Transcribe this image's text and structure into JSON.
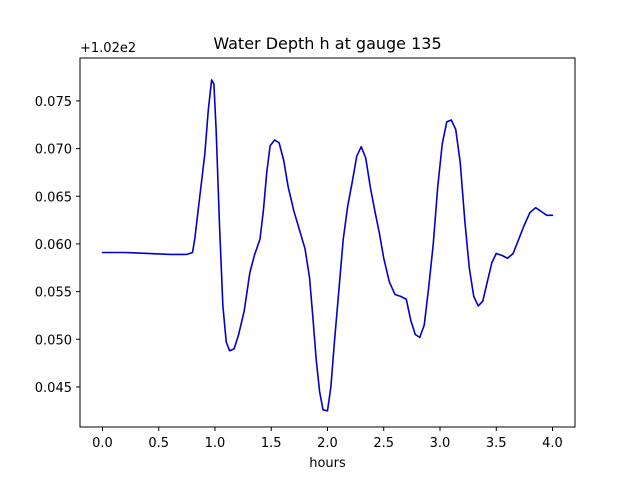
{
  "chart_data": {
    "type": "line",
    "title": "Water Depth h at gauge 135",
    "xlabel": "hours",
    "ylabel": "",
    "offset_text": "+1.02e2",
    "xlim": [
      -0.2,
      4.2
    ],
    "ylim": [
      0.0408,
      0.0795
    ],
    "xticks": [
      0.0,
      0.5,
      1.0,
      1.5,
      2.0,
      2.5,
      3.0,
      3.5,
      4.0
    ],
    "xtick_labels": [
      "0.0",
      "0.5",
      "1.0",
      "1.5",
      "2.0",
      "2.5",
      "3.0",
      "3.5",
      "4.0"
    ],
    "yticks": [
      0.045,
      0.05,
      0.055,
      0.06,
      0.065,
      0.07,
      0.075
    ],
    "ytick_labels": [
      "0.045",
      "0.050",
      "0.055",
      "0.060",
      "0.065",
      "0.070",
      "0.075"
    ],
    "grid": false,
    "series": [
      {
        "color": "#0000cc",
        "x": [
          0.0,
          0.2,
          0.4,
          0.6,
          0.75,
          0.8,
          0.82,
          0.85,
          0.88,
          0.91,
          0.94,
          0.97,
          0.99,
          1.01,
          1.04,
          1.07,
          1.1,
          1.13,
          1.17,
          1.21,
          1.26,
          1.31,
          1.35,
          1.4,
          1.43,
          1.46,
          1.49,
          1.53,
          1.57,
          1.61,
          1.65,
          1.7,
          1.75,
          1.8,
          1.84,
          1.87,
          1.9,
          1.93,
          1.96,
          2.0,
          2.03,
          2.06,
          2.1,
          2.14,
          2.18,
          2.22,
          2.26,
          2.3,
          2.34,
          2.38,
          2.42,
          2.46,
          2.5,
          2.55,
          2.6,
          2.65,
          2.7,
          2.74,
          2.78,
          2.82,
          2.86,
          2.9,
          2.94,
          2.98,
          3.02,
          3.06,
          3.1,
          3.14,
          3.18,
          3.22,
          3.26,
          3.3,
          3.34,
          3.38,
          3.42,
          3.46,
          3.5,
          3.55,
          3.6,
          3.65,
          3.7,
          3.75,
          3.8,
          3.85,
          3.9,
          3.95,
          4.0
        ],
        "y": [
          0.0591,
          0.0591,
          0.059,
          0.0589,
          0.0589,
          0.0591,
          0.0605,
          0.0635,
          0.0665,
          0.0695,
          0.074,
          0.0772,
          0.0768,
          0.072,
          0.062,
          0.0535,
          0.0497,
          0.0488,
          0.049,
          0.0505,
          0.053,
          0.057,
          0.0588,
          0.0605,
          0.0635,
          0.0675,
          0.0703,
          0.0709,
          0.0706,
          0.0688,
          0.066,
          0.0635,
          0.0615,
          0.0595,
          0.0565,
          0.0523,
          0.0478,
          0.0445,
          0.0426,
          0.0425,
          0.045,
          0.0495,
          0.055,
          0.0605,
          0.064,
          0.0665,
          0.0692,
          0.0702,
          0.069,
          0.066,
          0.0635,
          0.0612,
          0.0585,
          0.056,
          0.0547,
          0.0545,
          0.0542,
          0.052,
          0.0505,
          0.0502,
          0.0515,
          0.0555,
          0.06,
          0.066,
          0.0705,
          0.0728,
          0.073,
          0.072,
          0.0685,
          0.0625,
          0.0575,
          0.0545,
          0.0535,
          0.054,
          0.056,
          0.058,
          0.059,
          0.0588,
          0.0585,
          0.059,
          0.0605,
          0.062,
          0.0633,
          0.0638,
          0.0634,
          0.063,
          0.063
        ]
      }
    ]
  }
}
